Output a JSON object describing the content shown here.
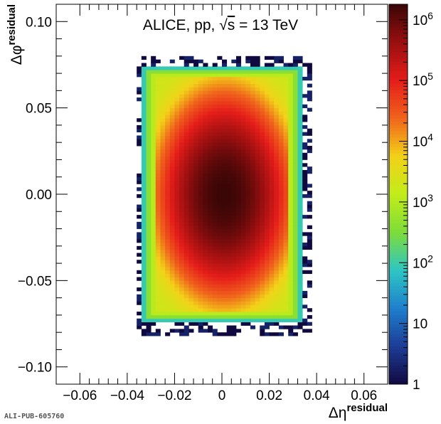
{
  "chart_data": {
    "type": "heatmap",
    "title": "ALICE, pp, √s = 13 TeV",
    "title_parts": {
      "prefix": "ALICE, pp, ",
      "sqrt": "√",
      "var": "s",
      "suffix": " = 13 TeV"
    },
    "xlabel": {
      "base": "Δη",
      "sup": "residual"
    },
    "ylabel": {
      "base": "Δφ",
      "sup": "residual"
    },
    "xlim": [
      -0.07,
      0.07
    ],
    "ylim": [
      -0.11,
      0.11
    ],
    "xticks": [
      -0.06,
      -0.04,
      -0.02,
      0.0,
      0.02,
      0.04,
      0.06
    ],
    "xtick_labels": [
      "−0.06",
      "−0.04",
      "−0.02",
      "0",
      "0.02",
      "0.04",
      "0.06"
    ],
    "yticks": [
      -0.1,
      -0.05,
      0.0,
      0.05,
      0.1
    ],
    "ytick_labels": [
      "−0.10",
      "−0.05",
      "0.00",
      "0.05",
      "0.10"
    ],
    "z_scale": "log",
    "zlim": [
      1,
      1800000
    ],
    "colorbar_ticks": [
      1,
      10,
      100,
      1000,
      10000,
      100000,
      1000000
    ],
    "colorbar_labels": [
      {
        "base": "1",
        "exp": ""
      },
      {
        "base": "10",
        "exp": ""
      },
      {
        "base": "10",
        "exp": "2"
      },
      {
        "base": "10",
        "exp": "3"
      },
      {
        "base": "10",
        "exp": "4"
      },
      {
        "base": "10",
        "exp": "5"
      },
      {
        "base": "10",
        "exp": "6"
      }
    ],
    "distribution": {
      "peak_count": 1800000,
      "center": [
        0.001,
        0.0
      ],
      "sigma_eta": 0.0095,
      "sigma_phi": 0.02,
      "eta_range": [
        -0.034,
        0.034
      ],
      "phi_range": [
        -0.074,
        0.074
      ],
      "edge_count": 90,
      "sparse_region_eta": [
        -0.036,
        0.037
      ],
      "sparse_region_phi": [
        -0.082,
        0.08
      ]
    },
    "bin_width": 0.002
  },
  "colors": {
    "palette": [
      "#10093f",
      "#1c3c95",
      "#1f7fcc",
      "#2ec6c4",
      "#7ddc3a",
      "#c2ec1a",
      "#f2d219",
      "#f0641c",
      "#e51d1a",
      "#9a0f10",
      "#3a0606"
    ]
  },
  "footer": {
    "reference": "ALI-PUB-605760"
  }
}
